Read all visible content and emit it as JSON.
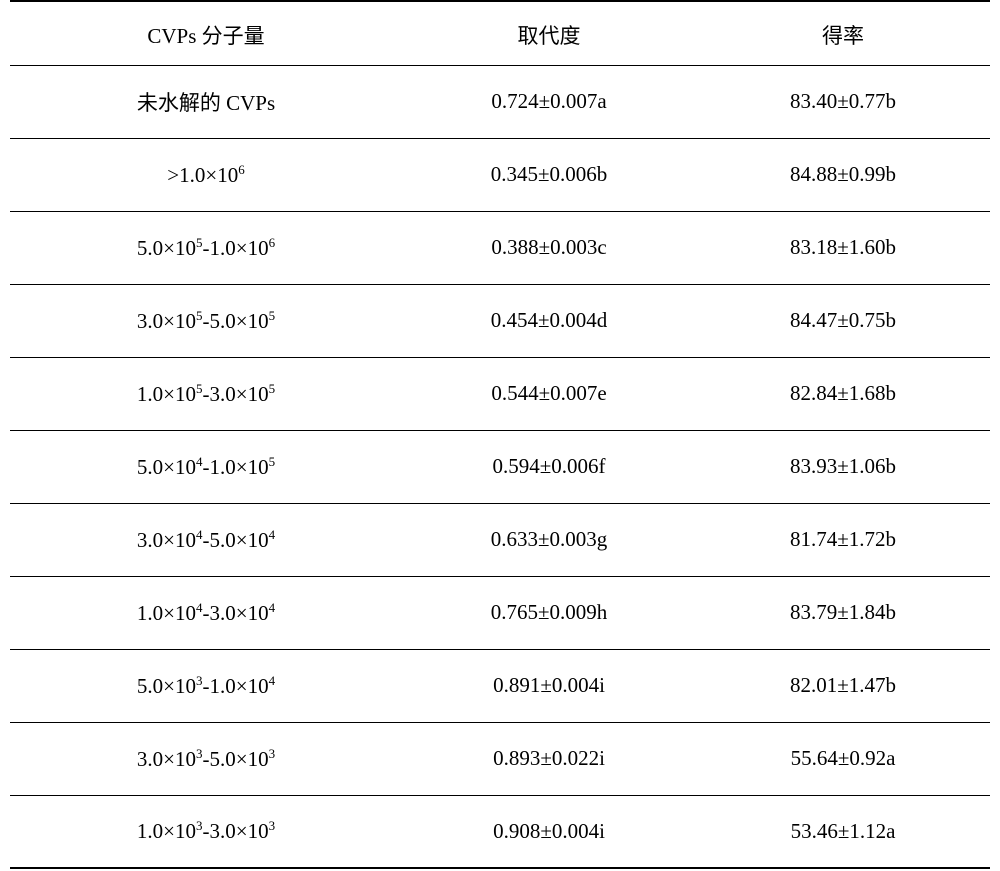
{
  "table": {
    "headers": {
      "col1": "CVPs 分子量",
      "col2": "取代度",
      "col3": "得率"
    },
    "rows": [
      {
        "col1_html": "未水解的 CVPs",
        "col2": "0.724±0.007a",
        "col3": "83.40±0.77b"
      },
      {
        "col1_html": ">1.0×10<sup>6</sup>",
        "col2": "0.345±0.006b",
        "col3": "84.88±0.99b"
      },
      {
        "col1_html": "5.0×10<sup>5</sup>-1.0×10<sup>6</sup>",
        "col2": "0.388±0.003c",
        "col3": "83.18±1.60b"
      },
      {
        "col1_html": "3.0×10<sup>5</sup>-5.0×10<sup>5</sup>",
        "col2": "0.454±0.004d",
        "col3": "84.47±0.75b"
      },
      {
        "col1_html": "1.0×10<sup>5</sup>-3.0×10<sup>5</sup>",
        "col2": "0.544±0.007e",
        "col3": "82.84±1.68b"
      },
      {
        "col1_html": "5.0×10<sup>4</sup>-1.0×10<sup>5</sup>",
        "col2": "0.594±0.006f",
        "col3": "83.93±1.06b"
      },
      {
        "col1_html": "3.0×10<sup>4</sup>-5.0×10<sup>4</sup>",
        "col2": "0.633±0.003g",
        "col3": "81.74±1.72b"
      },
      {
        "col1_html": "1.0×10<sup>4</sup>-3.0×10<sup>4</sup>",
        "col2": "0.765±0.009h",
        "col3": "83.79±1.84b"
      },
      {
        "col1_html": "5.0×10<sup>3</sup>-1.0×10<sup>4</sup>",
        "col2": "0.891±0.004i",
        "col3": "82.01±1.47b"
      },
      {
        "col1_html": "3.0×10<sup>3</sup>-5.0×10<sup>3</sup>",
        "col2": "0.893±0.022i",
        "col3": "55.64±0.92a"
      },
      {
        "col1_html": "1.0×10<sup>3</sup>-3.0×10<sup>3</sup>",
        "col2": "0.908±0.004i",
        "col3": "53.46±1.12a"
      }
    ],
    "styling": {
      "background_color": "#ffffff",
      "text_color": "#000000",
      "border_color": "#000000",
      "font_size": 21,
      "font_family": "Times New Roman, SimSun, serif",
      "header_border_top_width": 2,
      "header_border_bottom_width": 1.5,
      "row_border_width": 1,
      "last_row_border_width": 2,
      "column_widths": [
        "40%",
        "30%",
        "30%"
      ],
      "header_row_height": 64,
      "body_row_height": 73,
      "superscript_fontsize": 13
    }
  }
}
